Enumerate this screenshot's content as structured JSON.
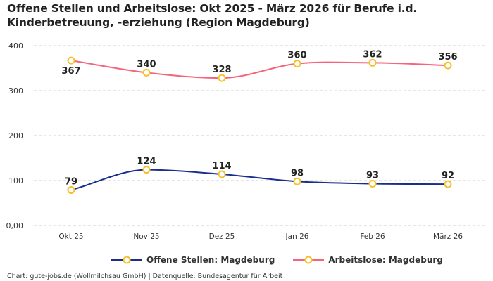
{
  "title": "Offene Stellen und Arbeitslose: Okt 2025 - März 2026 für Berufe i.d. Kinderbetreuung, -erziehung (Region Magdeburg)",
  "footer": "Chart: gute-jobs.de (Wollmilchsau GmbH) | Datenquelle: Bundesagentur für Arbeit",
  "chart_data": {
    "type": "line",
    "title": "Offene Stellen und Arbeitslose: Okt 2025 - März 2026 für Berufe i.d. Kinderbetreuung, -erziehung (Region Magdeburg)",
    "categories": [
      "Okt 25",
      "Nov 25",
      "Dez 25",
      "Jan 26",
      "Feb 26",
      "März 26"
    ],
    "ylim": [
      0,
      400
    ],
    "yticks": [
      0,
      100,
      200,
      300,
      400
    ],
    "ytick_labels": [
      "0,00",
      "100",
      "200",
      "300",
      "400"
    ],
    "grid": true,
    "legend": "bottom",
    "series": [
      {
        "name": "Offene Stellen: Magdeburg",
        "values": [
          79,
          124,
          114,
          98,
          93,
          92
        ],
        "color": "#1a2e8c",
        "marker_color": "#f5c02a"
      },
      {
        "name": "Arbeitslose: Magdeburg",
        "values": [
          367,
          340,
          328,
          360,
          362,
          356
        ],
        "color": "#f5647a",
        "marker_color": "#f5c02a"
      }
    ]
  }
}
